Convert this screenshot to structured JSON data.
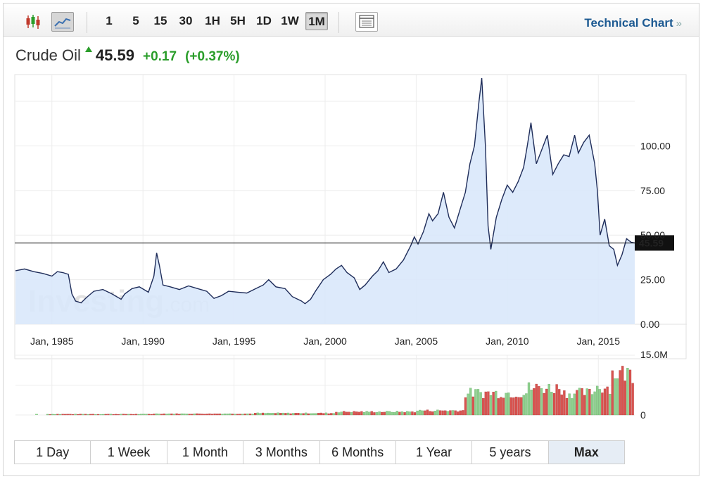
{
  "toolbar": {
    "chart_type_icons": [
      {
        "name": "candlestick-icon",
        "active": false
      },
      {
        "name": "line-chart-icon",
        "active": true
      }
    ],
    "intervals": [
      "1",
      "5",
      "15",
      "30",
      "1H",
      "5H",
      "1D",
      "1W",
      "1M"
    ],
    "active_interval": "1M",
    "table_icon": "table-icon",
    "technical_chart_label": "Technical Chart",
    "technical_chart_chevron": "»"
  },
  "quote": {
    "name": "Crude Oil",
    "price": "45.59",
    "change": "+0.17",
    "change_pct": "(+0.37%)",
    "direction": "up",
    "up_color": "#2a9d2a"
  },
  "watermark": {
    "brand": "Investing",
    "suffix": ".com"
  },
  "ranges": [
    "1 Day",
    "1 Week",
    "1 Month",
    "3 Months",
    "6 Months",
    "1 Year",
    "5 years",
    "Max"
  ],
  "active_range": "Max",
  "chart_data": {
    "type": "area",
    "title": "Crude Oil",
    "price_series": {
      "name": "Crude Oil",
      "line_color": "#1f2d5a",
      "fill_color": "#d9e8fb",
      "points": [
        [
          1983.0,
          30
        ],
        [
          1983.5,
          31
        ],
        [
          1984.0,
          29.5
        ],
        [
          1984.5,
          28.5
        ],
        [
          1985.0,
          27
        ],
        [
          1985.3,
          29.5
        ],
        [
          1985.6,
          29
        ],
        [
          1985.9,
          28
        ],
        [
          1986.1,
          17
        ],
        [
          1986.3,
          13
        ],
        [
          1986.6,
          12
        ],
        [
          1986.9,
          15
        ],
        [
          1987.3,
          18.5
        ],
        [
          1987.8,
          19.5
        ],
        [
          1988.3,
          17
        ],
        [
          1988.8,
          14
        ],
        [
          1989.0,
          17
        ],
        [
          1989.4,
          20
        ],
        [
          1989.8,
          21
        ],
        [
          1990.3,
          18
        ],
        [
          1990.6,
          27
        ],
        [
          1990.75,
          40
        ],
        [
          1990.9,
          33
        ],
        [
          1991.1,
          22
        ],
        [
          1991.5,
          21
        ],
        [
          1992.0,
          19.5
        ],
        [
          1992.5,
          21.5
        ],
        [
          1993.0,
          20
        ],
        [
          1993.5,
          18.5
        ],
        [
          1993.9,
          14.5
        ],
        [
          1994.3,
          16
        ],
        [
          1994.7,
          18.5
        ],
        [
          1995.2,
          18
        ],
        [
          1995.7,
          17.5
        ],
        [
          1996.2,
          20
        ],
        [
          1996.6,
          22
        ],
        [
          1996.9,
          25
        ],
        [
          1997.3,
          21
        ],
        [
          1997.8,
          20
        ],
        [
          1998.2,
          15.5
        ],
        [
          1998.7,
          13
        ],
        [
          1998.9,
          11.5
        ],
        [
          1999.2,
          14
        ],
        [
          1999.5,
          19
        ],
        [
          1999.9,
          25
        ],
        [
          2000.3,
          28
        ],
        [
          2000.6,
          31
        ],
        [
          2000.9,
          33
        ],
        [
          2001.2,
          29
        ],
        [
          2001.6,
          26
        ],
        [
          2001.9,
          19.5
        ],
        [
          2002.2,
          22
        ],
        [
          2002.6,
          27
        ],
        [
          2002.9,
          30
        ],
        [
          2003.2,
          35
        ],
        [
          2003.5,
          29
        ],
        [
          2003.9,
          31
        ],
        [
          2004.3,
          36
        ],
        [
          2004.7,
          44
        ],
        [
          2004.9,
          49
        ],
        [
          2005.1,
          45
        ],
        [
          2005.4,
          52
        ],
        [
          2005.7,
          62
        ],
        [
          2005.9,
          58
        ],
        [
          2006.2,
          62
        ],
        [
          2006.5,
          74
        ],
        [
          2006.8,
          60
        ],
        [
          2007.1,
          54
        ],
        [
          2007.4,
          64
        ],
        [
          2007.7,
          74
        ],
        [
          2007.95,
          90
        ],
        [
          2008.2,
          100
        ],
        [
          2008.45,
          125
        ],
        [
          2008.6,
          138
        ],
        [
          2008.8,
          100
        ],
        [
          2008.95,
          55
        ],
        [
          2009.1,
          42
        ],
        [
          2009.4,
          60
        ],
        [
          2009.7,
          70
        ],
        [
          2010.0,
          78
        ],
        [
          2010.3,
          74
        ],
        [
          2010.6,
          80
        ],
        [
          2010.9,
          88
        ],
        [
          2011.1,
          100
        ],
        [
          2011.3,
          113
        ],
        [
          2011.6,
          90
        ],
        [
          2011.9,
          98
        ],
        [
          2012.2,
          106
        ],
        [
          2012.5,
          84
        ],
        [
          2012.8,
          90
        ],
        [
          2013.1,
          95
        ],
        [
          2013.4,
          94
        ],
        [
          2013.7,
          106
        ],
        [
          2013.9,
          96
        ],
        [
          2014.2,
          102
        ],
        [
          2014.5,
          106
        ],
        [
          2014.8,
          90
        ],
        [
          2014.95,
          75
        ],
        [
          2015.1,
          50
        ],
        [
          2015.35,
          59
        ],
        [
          2015.6,
          44
        ],
        [
          2015.85,
          42
        ],
        [
          2016.05,
          33
        ],
        [
          2016.3,
          39
        ],
        [
          2016.55,
          48
        ],
        [
          2016.8,
          46
        ],
        [
          2017.0,
          45.59
        ]
      ]
    },
    "current_price_line": {
      "value": 45.59,
      "label": "45.59"
    },
    "y_axis": {
      "range": [
        0,
        140
      ],
      "tick_values": [
        0,
        25,
        50,
        75,
        100
      ],
      "tick_labels": [
        "0.00",
        "25.00",
        "50.00",
        "75.00",
        "100.00"
      ]
    },
    "x_axis": {
      "range": [
        1983.0,
        2017.0
      ],
      "tick_values": [
        1985,
        1990,
        1995,
        2000,
        2005,
        2010,
        2015
      ],
      "tick_labels": [
        "Jan, 1985",
        "Jan, 1990",
        "Jan, 1995",
        "Jan, 2000",
        "Jan, 2005",
        "Jan, 2010",
        "Jan, 2015"
      ]
    },
    "volume": {
      "type": "bar",
      "unit": "M",
      "range": [
        0,
        15
      ],
      "tick_labels": [
        "15.0M",
        "0"
      ],
      "up_color": "#8fd08f",
      "down_color": "#d9534f",
      "start_year": 1984.7,
      "end_year": 2016.95,
      "segments": [
        {
          "from": 1984.7,
          "to": 1990.5,
          "level": 0.2
        },
        {
          "from": 1990.5,
          "to": 1996.0,
          "level": 0.3
        },
        {
          "from": 1996.0,
          "to": 2000.5,
          "level": 0.45
        },
        {
          "from": 2000.5,
          "to": 2005.0,
          "level": 0.8
        },
        {
          "from": 2005.0,
          "to": 2007.6,
          "level": 1.1
        },
        {
          "from": 2007.6,
          "to": 2011.0,
          "level": 5.5
        },
        {
          "from": 2011.0,
          "to": 2013.0,
          "level": 6.8
        },
        {
          "from": 2013.0,
          "to": 2014.7,
          "level": 5.5
        },
        {
          "from": 2014.7,
          "to": 2015.6,
          "level": 7.0
        },
        {
          "from": 2015.6,
          "to": 2016.95,
          "level": 10.5
        }
      ]
    }
  }
}
